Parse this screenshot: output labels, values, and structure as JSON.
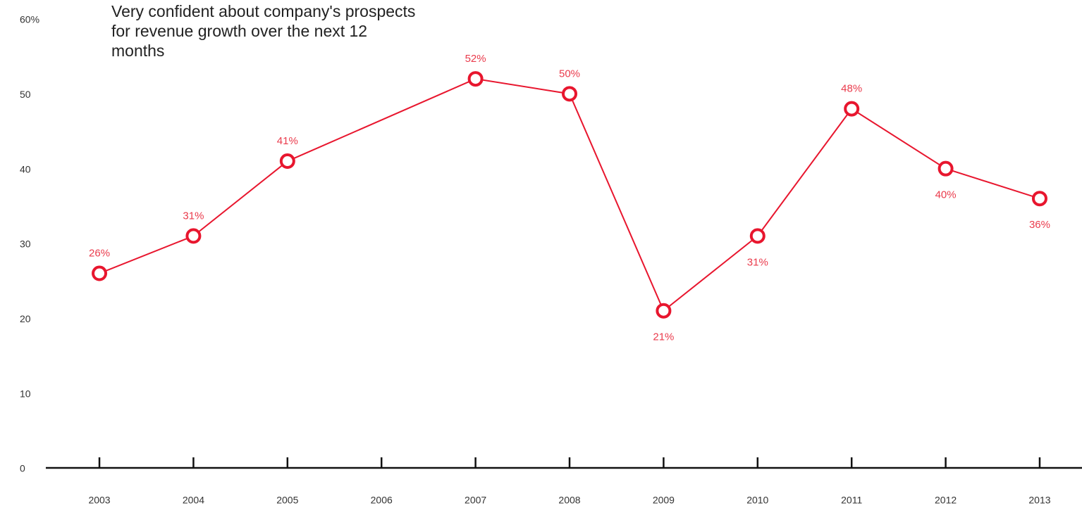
{
  "chart_data": {
    "type": "line",
    "title": "Very confident about company's prospects for revenue growth over the next 12 months",
    "x": [
      2003,
      2004,
      2005,
      2007,
      2008,
      2009,
      2010,
      2011,
      2012,
      2013
    ],
    "series": [
      {
        "color": "#e8162e",
        "values": [
          26,
          31,
          41,
          52,
          50,
          21,
          31,
          48,
          40,
          36
        ],
        "value_labels": [
          "26%",
          "31%",
          "41%",
          "52%",
          "50%",
          "21%",
          "31%",
          "48%",
          "40%",
          "36%"
        ]
      }
    ],
    "xlim": [
      2002.43,
      2013.45
    ],
    "xticks": [
      2003,
      2004,
      2005,
      2006,
      2007,
      2008,
      2009,
      2010,
      2011,
      2012,
      2013
    ],
    "ylim": [
      0,
      60
    ],
    "yticks": [
      0,
      10,
      20,
      30,
      40,
      50,
      {
        "value": 60,
        "label": "60%"
      }
    ]
  }
}
